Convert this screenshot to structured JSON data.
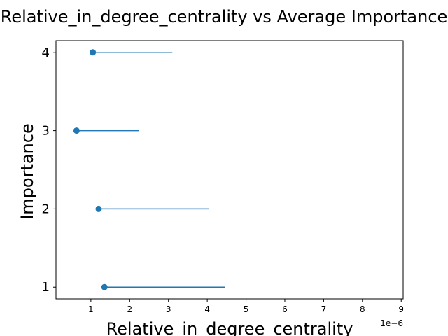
{
  "chart_data": {
    "type": "scatter",
    "title": "Relative_in_degree_centrality vs Average Importance",
    "xlabel": "Relative_in_degree_centrality",
    "ylabel": "Importance",
    "x_offset_text": "1e−6",
    "x_scale_factor": 1e-06,
    "xlim": [
      0.1,
      9.05
    ],
    "ylim": [
      0.85,
      4.15
    ],
    "xticks": [
      1,
      2,
      3,
      4,
      5,
      6,
      7,
      8,
      9
    ],
    "yticks": [
      1,
      2,
      3,
      4
    ],
    "grid": false,
    "color": "#1f77b4",
    "points": [
      {
        "y": 1,
        "x": 1.35,
        "xerr_low": 0.0,
        "xerr_high": 3.1
      },
      {
        "y": 2,
        "x": 1.2,
        "xerr_low": 0.0,
        "xerr_high": 2.85
      },
      {
        "y": 3,
        "x": 0.63,
        "xerr_low": 0.0,
        "xerr_high": 1.6
      },
      {
        "y": 4,
        "x": 1.05,
        "xerr_low": 0.0,
        "xerr_high": 2.05
      }
    ]
  }
}
